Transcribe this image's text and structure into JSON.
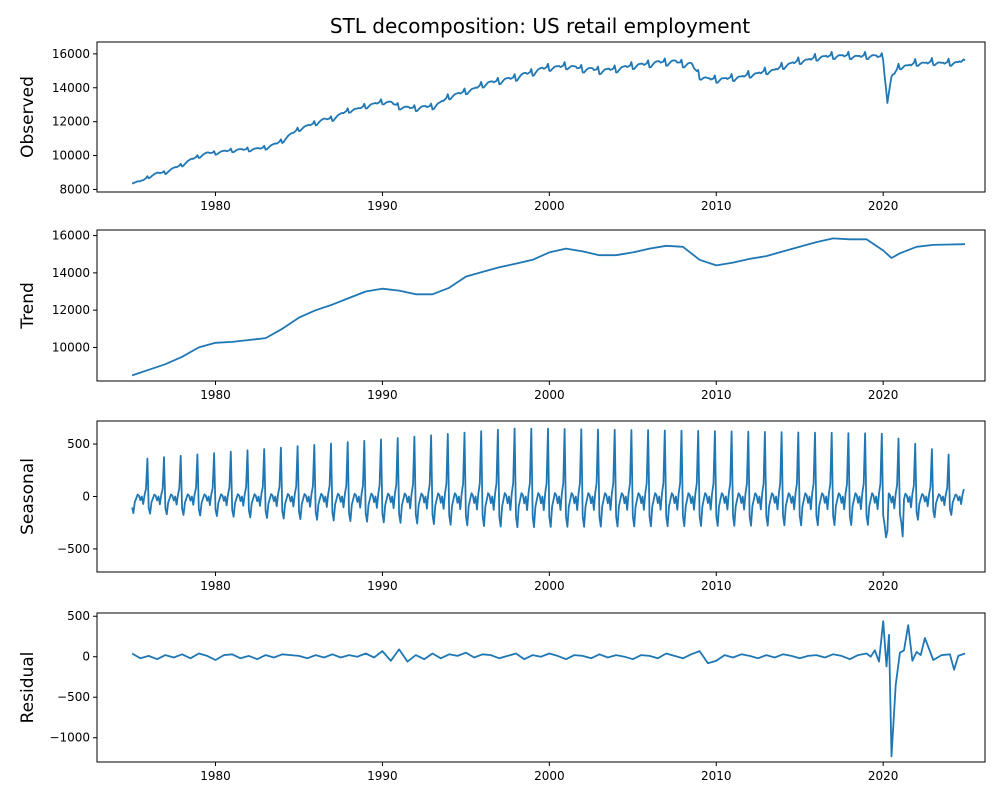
{
  "figure": {
    "title": "STL decomposition: US retail employment"
  },
  "chart_data": [
    {
      "type": "line",
      "panel": "observed",
      "ylabel": "Observed",
      "xlim": [
        1972.9,
        2026.1
      ],
      "ylim": [
        7850,
        16700
      ],
      "xticks": [
        1980,
        1990,
        2000,
        2010,
        2020
      ],
      "yticks": [
        8000,
        10000,
        12000,
        14000,
        16000
      ],
      "color": "#1f77b4",
      "grid": false,
      "x": [
        1975.0,
        1975.5,
        1976.0,
        1976.5,
        1977.0,
        1977.5,
        1978.0,
        1978.5,
        1979.0,
        1979.5,
        1980.0,
        1980.5,
        1981.0,
        1981.5,
        1982.0,
        1982.5,
        1983.0,
        1983.5,
        1984.0,
        1984.5,
        1985.0,
        1985.5,
        1986.0,
        1986.5,
        1987.0,
        1987.5,
        1988.0,
        1988.5,
        1989.0,
        1989.5,
        1990.0,
        1990.5,
        1991.0,
        1991.5,
        1992.0,
        1992.5,
        1993.0,
        1993.5,
        1994.0,
        1994.5,
        1995.0,
        1995.5,
        1996.0,
        1996.5,
        1997.0,
        1997.5,
        1998.0,
        1998.5,
        1999.0,
        1999.5,
        2000.0,
        2000.5,
        2001.0,
        2001.5,
        2002.0,
        2002.5,
        2003.0,
        2003.5,
        2004.0,
        2004.5,
        2005.0,
        2005.5,
        2006.0,
        2006.5,
        2007.0,
        2007.5,
        2008.0,
        2008.5,
        2009.0,
        2009.5,
        2010.0,
        2010.5,
        2011.0,
        2011.5,
        2012.0,
        2012.5,
        2013.0,
        2013.5,
        2014.0,
        2014.5,
        2015.0,
        2015.5,
        2016.0,
        2016.5,
        2017.0,
        2017.5,
        2018.0,
        2018.5,
        2019.0,
        2019.5,
        2020.0,
        2020.25,
        2020.5,
        2021.0,
        2021.5,
        2022.0,
        2022.5,
        2023.0,
        2023.5,
        2024.0,
        2024.5,
        2024.9
      ],
      "y": [
        8400,
        8500,
        8700,
        9000,
        8950,
        9300,
        9400,
        9800,
        9900,
        10200,
        10100,
        10300,
        10250,
        10400,
        10300,
        10450,
        10400,
        10700,
        10800,
        11300,
        11500,
        11800,
        11850,
        12200,
        12100,
        12500,
        12600,
        12800,
        12850,
        13100,
        13100,
        13200,
        12800,
        12900,
        12700,
        12950,
        12800,
        13200,
        13400,
        13700,
        13700,
        14000,
        14100,
        14400,
        14300,
        14600,
        14500,
        14900,
        14800,
        15200,
        15100,
        15300,
        15200,
        15300,
        15000,
        15200,
        14900,
        15150,
        15000,
        15300,
        15200,
        15450,
        15300,
        15600,
        15400,
        15650,
        15300,
        15500,
        14600,
        14600,
        14400,
        14600,
        14500,
        14700,
        14700,
        14900,
        14900,
        15100,
        15200,
        15500,
        15500,
        15700,
        15700,
        15900,
        15800,
        15950,
        15800,
        15900,
        15800,
        15950,
        15700,
        13100,
        14700,
        15200,
        15350,
        15400,
        15500,
        15450,
        15500,
        15400,
        15550,
        15600
      ],
      "seasonal_period": 1,
      "seasonal_amp_early": 200,
      "seasonal_amp_late": 550
    },
    {
      "type": "line",
      "panel": "trend",
      "ylabel": "Trend",
      "xlim": [
        1972.9,
        2026.1
      ],
      "ylim": [
        8200,
        16300
      ],
      "xticks": [
        1980,
        1990,
        2000,
        2010,
        2020
      ],
      "yticks": [
        10000,
        12000,
        14000,
        16000
      ],
      "color": "#1f77b4",
      "grid": false,
      "x": [
        1975.0,
        1976.0,
        1977.0,
        1978.0,
        1979.0,
        1980.0,
        1981.0,
        1982.0,
        1983.0,
        1984.0,
        1985.0,
        1986.0,
        1987.0,
        1988.0,
        1989.0,
        1990.0,
        1991.0,
        1992.0,
        1993.0,
        1994.0,
        1995.0,
        1996.0,
        1997.0,
        1998.0,
        1999.0,
        2000.0,
        2001.0,
        2002.0,
        2003.0,
        2004.0,
        2005.0,
        2006.0,
        2007.0,
        2008.0,
        2009.0,
        2010.0,
        2011.0,
        2012.0,
        2013.0,
        2014.0,
        2015.0,
        2016.0,
        2017.0,
        2018.0,
        2019.0,
        2020.0,
        2020.5,
        2021.0,
        2022.0,
        2023.0,
        2024.0,
        2024.9
      ],
      "y": [
        8500,
        8800,
        9100,
        9500,
        10000,
        10250,
        10300,
        10400,
        10500,
        11000,
        11600,
        12000,
        12300,
        12650,
        13000,
        13150,
        13050,
        12850,
        12850,
        13200,
        13800,
        14050,
        14300,
        14500,
        14700,
        15100,
        15300,
        15150,
        14950,
        14950,
        15100,
        15300,
        15450,
        15400,
        14700,
        14400,
        14550,
        14750,
        14900,
        15150,
        15400,
        15650,
        15850,
        15800,
        15800,
        15200,
        14800,
        15050,
        15400,
        15500,
        15520,
        15540
      ]
    },
    {
      "type": "line",
      "panel": "seasonal",
      "ylabel": "Seasonal",
      "xlim": [
        1972.9,
        2026.1
      ],
      "ylim": [
        -720,
        720
      ],
      "xticks": [
        1980,
        1990,
        2000,
        2010,
        2020
      ],
      "yticks": [
        -500,
        0,
        500
      ],
      "color": "#1f77b4",
      "grid": false,
      "x_start": 1975.0,
      "x_end": 2024.9,
      "period_years": 1,
      "amplitude_at_1975": 350,
      "amplitude_at_1998": 650,
      "amplitude_at_2020": 600,
      "amplitude_at_2024": 350
    },
    {
      "type": "line",
      "panel": "residual",
      "ylabel": "Residual",
      "xlim": [
        1972.9,
        2026.1
      ],
      "ylim": [
        -1300,
        540
      ],
      "xticks": [
        1980,
        1990,
        2000,
        2010,
        2020
      ],
      "yticks": [
        -1000,
        -500,
        0,
        500
      ],
      "color": "#1f77b4",
      "grid": false,
      "x": [
        1975.0,
        1975.5,
        1976.0,
        1976.5,
        1977.0,
        1977.5,
        1978.0,
        1978.5,
        1979.0,
        1979.5,
        1980.0,
        1980.5,
        1981.0,
        1981.5,
        1982.0,
        1982.5,
        1983.0,
        1983.5,
        1984.0,
        1984.5,
        1985.0,
        1985.5,
        1986.0,
        1986.5,
        1987.0,
        1987.5,
        1988.0,
        1988.5,
        1989.0,
        1989.5,
        1990.0,
        1990.5,
        1991.0,
        1991.5,
        1992.0,
        1992.5,
        1993.0,
        1993.5,
        1994.0,
        1994.5,
        1995.0,
        1995.5,
        1996.0,
        1996.5,
        1997.0,
        1997.5,
        1998.0,
        1998.5,
        1999.0,
        1999.5,
        2000.0,
        2000.5,
        2001.0,
        2001.5,
        2002.0,
        2002.5,
        2003.0,
        2003.5,
        2004.0,
        2004.5,
        2005.0,
        2005.5,
        2006.0,
        2006.5,
        2007.0,
        2007.5,
        2008.0,
        2008.5,
        2009.0,
        2009.5,
        2010.0,
        2010.5,
        2011.0,
        2011.5,
        2012.0,
        2012.5,
        2013.0,
        2013.5,
        2014.0,
        2014.5,
        2015.0,
        2015.5,
        2016.0,
        2016.5,
        2017.0,
        2017.5,
        2018.0,
        2018.5,
        2019.0,
        2019.25,
        2019.5,
        2019.75,
        2020.0,
        2020.2,
        2020.35,
        2020.5,
        2020.75,
        2021.0,
        2021.25,
        2021.5,
        2021.75,
        2022.0,
        2022.25,
        2022.5,
        2023.0,
        2023.5,
        2024.0,
        2024.25,
        2024.5,
        2024.9
      ],
      "y": [
        40,
        -20,
        10,
        -30,
        20,
        -10,
        30,
        -20,
        40,
        10,
        -40,
        20,
        30,
        -20,
        10,
        -30,
        20,
        -10,
        30,
        20,
        10,
        -20,
        20,
        -10,
        30,
        -10,
        20,
        0,
        40,
        -10,
        70,
        -50,
        90,
        -60,
        20,
        -30,
        40,
        -20,
        30,
        10,
        50,
        -10,
        30,
        20,
        -20,
        10,
        40,
        -30,
        20,
        0,
        40,
        10,
        -30,
        20,
        10,
        -20,
        30,
        -10,
        20,
        0,
        -30,
        20,
        10,
        -20,
        40,
        10,
        -20,
        30,
        70,
        -80,
        -50,
        20,
        -10,
        30,
        10,
        -20,
        20,
        -10,
        30,
        10,
        -20,
        10,
        20,
        -10,
        30,
        10,
        -30,
        20,
        40,
        0,
        80,
        -60,
        440,
        -120,
        270,
        -1230,
        -350,
        50,
        80,
        390,
        -50,
        60,
        20,
        230,
        -40,
        20,
        30,
        -160,
        10,
        40
      ]
    }
  ]
}
